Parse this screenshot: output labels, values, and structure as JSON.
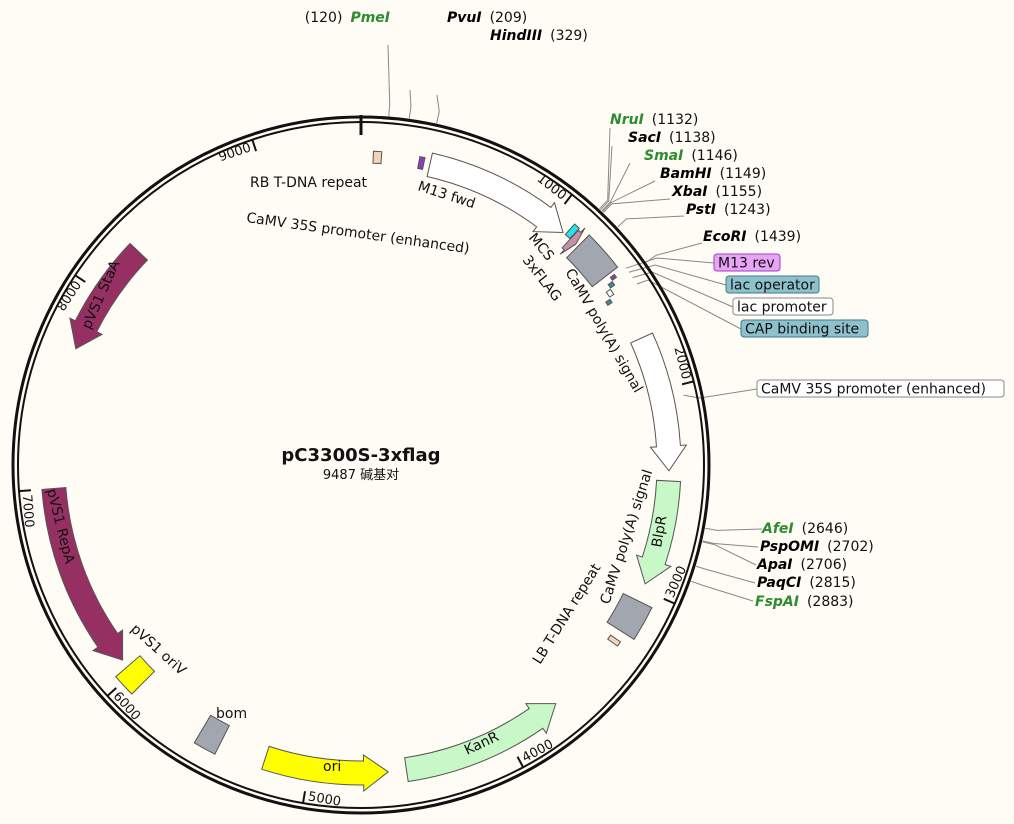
{
  "map": {
    "name": "pC3300S-3xflag",
    "length_label": "9487 碱基对",
    "length_bp": 9487
  },
  "ticks": [
    "1000",
    "2000",
    "3000",
    "4000",
    "5000",
    "6000",
    "7000",
    "8000",
    "9000"
  ],
  "features": [
    {
      "id": "rb",
      "label": "RB T-DNA repeat",
      "start": 60,
      "end": 100,
      "dir": 0,
      "color": "#f5d3b8"
    },
    {
      "id": "m13fwd",
      "label": "M13 fwd",
      "start": 285,
      "end": 310,
      "dir": 0,
      "color": "#8b3fb8"
    },
    {
      "id": "p35s1",
      "label": "CaMV 35S promoter (enhanced)",
      "start": 340,
      "end": 1080,
      "dir": 1,
      "color": "#ffffff"
    },
    {
      "id": "flag",
      "label": "3xFLAG",
      "start": 1095,
      "end": 1125,
      "dir": 0,
      "color": "#22e4ee"
    },
    {
      "id": "mcs",
      "label": "MCS",
      "start": 1128,
      "end": 1165,
      "dir": 1,
      "color": "#c78fa8"
    },
    {
      "id": "polya1",
      "label": "CaMV poly(A) signal",
      "start": 1180,
      "end": 1380,
      "dir": 0,
      "color": "#a2a6af"
    },
    {
      "id": "m13rev",
      "label": "M13 rev",
      "start": 1398,
      "end": 1415,
      "dir": 0,
      "color": "#8b3fb8"
    },
    {
      "id": "lacop",
      "label": "lac operator",
      "start": 1420,
      "end": 1440,
      "dir": 0,
      "color": "#3a8c98"
    },
    {
      "id": "lacpro",
      "label": "lac promoter",
      "start": 1445,
      "end": 1475,
      "dir": 0,
      "color": "#ffffff"
    },
    {
      "id": "cap",
      "label": "CAP binding site",
      "start": 1485,
      "end": 1505,
      "dir": 0,
      "color": "#3a8c98"
    },
    {
      "id": "p35s2",
      "label": "CaMV 35S promoter (enhanced)",
      "start": 1730,
      "end": 2400,
      "dir": 1,
      "color": "#ffffff"
    },
    {
      "id": "blpr",
      "label": "BlpR",
      "start": 2450,
      "end": 2970,
      "dir": 1,
      "color": "#c8f7c8"
    },
    {
      "id": "polya2",
      "label": "CaMV poly(A) signal",
      "start": 3060,
      "end": 3230,
      "dir": 0,
      "color": "#a2a6af"
    },
    {
      "id": "lb",
      "label": "LB T-DNA repeat",
      "start": 3275,
      "end": 3300,
      "dir": 0,
      "color": "#f5d3b8"
    },
    {
      "id": "kanr",
      "label": "KanR",
      "start": 3710,
      "end": 4520,
      "dir": -1,
      "color": "#c8f7c8"
    },
    {
      "id": "ori",
      "label": "ori",
      "start": 4610,
      "end": 5220,
      "dir": -1,
      "color": "#ffff00"
    },
    {
      "id": "bom",
      "label": "bom",
      "start": 5450,
      "end": 5560,
      "dir": 0,
      "color": "#a2a6af"
    },
    {
      "id": "oriv",
      "label": "pVS1 oriV",
      "start": 5930,
      "end": 6040,
      "dir": 0,
      "color": "#ffff00"
    },
    {
      "id": "repa",
      "label": "pVS1 RepA",
      "start": 6080,
      "end": 7000,
      "dir": -1,
      "color": "#973062"
    },
    {
      "id": "staa",
      "label": "pVS1 StaA",
      "start": 7700,
      "end": 8270,
      "dir": -1,
      "color": "#973062"
    }
  ],
  "enzymes": [
    {
      "name": "PmeI",
      "pos": "(120)",
      "bp": 120,
      "color": "#2e8b2e"
    },
    {
      "name": "PvuI",
      "pos": "(209)",
      "bp": 209,
      "color": "#000000"
    },
    {
      "name": "HindIII",
      "pos": "(329)",
      "bp": 329,
      "color": "#000000"
    },
    {
      "name": "NruI",
      "pos": "(1132)",
      "bp": 1132,
      "color": "#2e8b2e"
    },
    {
      "name": "SacI",
      "pos": "(1138)",
      "bp": 1138,
      "color": "#000000"
    },
    {
      "name": "SmaI",
      "pos": "(1146)",
      "bp": 1146,
      "color": "#2e8b2e"
    },
    {
      "name": "BamHI",
      "pos": "(1149)",
      "bp": 1149,
      "color": "#000000"
    },
    {
      "name": "XbaI",
      "pos": "(1155)",
      "bp": 1155,
      "color": "#000000"
    },
    {
      "name": "PstI",
      "pos": "(1243)",
      "bp": 1243,
      "color": "#000000"
    },
    {
      "name": "EcoRI",
      "pos": "(1439)",
      "bp": 1439,
      "color": "#000000"
    },
    {
      "name": "AfeI",
      "pos": "(2646)",
      "bp": 2646,
      "color": "#2e8b2e"
    },
    {
      "name": "PspOMI",
      "pos": "(2702)",
      "bp": 2702,
      "color": "#000000"
    },
    {
      "name": "ApaI",
      "pos": "(2706)",
      "bp": 2706,
      "color": "#000000"
    },
    {
      "name": "PaqCI",
      "pos": "(2815)",
      "bp": 2815,
      "color": "#000000"
    },
    {
      "name": "FspAI",
      "pos": "(2883)",
      "bp": 2883,
      "color": "#2e8b2e"
    }
  ],
  "callouts": [
    {
      "label": "M13 rev",
      "bg": "#e8a4f7",
      "border": "#9a3fc0"
    },
    {
      "label": "lac operator",
      "bg": "#8ec1cc",
      "border": "#3a7c88"
    },
    {
      "label": "lac promoter",
      "bg": "#ffffff",
      "border": "#888888"
    },
    {
      "label": "CAP binding site",
      "bg": "#8ec1cc",
      "border": "#3a7c88"
    },
    {
      "label": "CaMV 35S promoter (enhanced)",
      "bg": "#ffffff",
      "border": "#888888"
    }
  ]
}
